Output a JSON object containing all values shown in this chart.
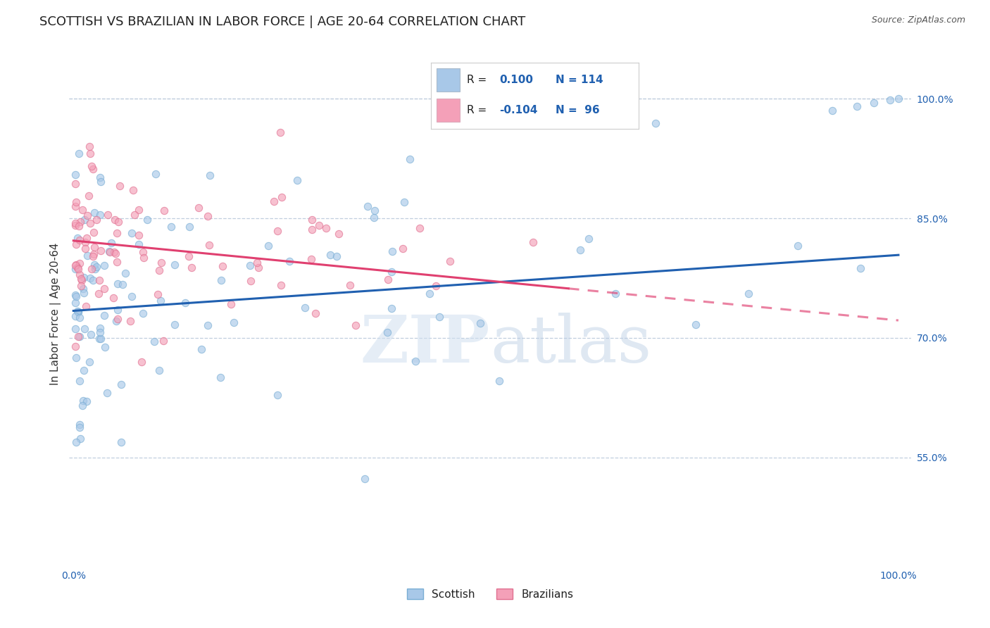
{
  "title": "SCOTTISH VS BRAZILIAN IN LABOR FORCE | AGE 20-64 CORRELATION CHART",
  "source_text": "Source: ZipAtlas.com",
  "ylabel": "In Labor Force | Age 20-64",
  "y_tick_labels_right": [
    "100.0%",
    "85.0%",
    "70.0%",
    "55.0%"
  ],
  "y_ticks_right": [
    1.0,
    0.85,
    0.7,
    0.55
  ],
  "watermark": "ZIPatlas",
  "scottish_color": "#A8C8E8",
  "scottish_edge": "#7AAED4",
  "brazilian_color": "#F4A0B8",
  "brazilian_edge": "#E07090",
  "trend_scottish_color": "#2060B0",
  "trend_brazilian_color": "#E04070",
  "background_color": "#FFFFFF",
  "title_fontsize": 13,
  "axis_label_fontsize": 11,
  "tick_fontsize": 10,
  "scatter_alpha": 0.65,
  "scatter_size": 55,
  "legend_r_color": "#222222",
  "legend_val_color": "#2060B0",
  "legend_n_color": "#2060B0"
}
